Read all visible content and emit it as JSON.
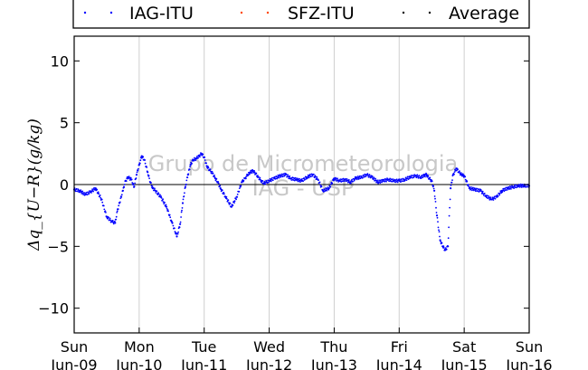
{
  "chart_data": {
    "type": "scatter",
    "title": "",
    "ylabel": "Δq_{U−R}(g/kg)",
    "xlabel": "",
    "ylim": [
      -12,
      12
    ],
    "yticks": [
      -10,
      -5,
      0,
      5,
      10
    ],
    "xlim": [
      "2013-06-09",
      "2013-06-16"
    ],
    "xtick_labels": [
      {
        "day": "Sun",
        "date": "Jun-09"
      },
      {
        "day": "Mon",
        "date": "Jun-10"
      },
      {
        "day": "Tue",
        "date": "Jun-11"
      },
      {
        "day": "Wed",
        "date": "Jun-12"
      },
      {
        "day": "Thu",
        "date": "Jun-13"
      },
      {
        "day": "Fri",
        "date": "Jun-14"
      },
      {
        "day": "Sat",
        "date": "Jun-15"
      },
      {
        "day": "Sun",
        "date": "Jun-16"
      }
    ],
    "vertical_grid": true,
    "zero_line": true,
    "legend_placement": "top, above plot",
    "watermark": [
      "Grupo de Micrometeorologia",
      "IAG - USP"
    ],
    "series": [
      {
        "name": "IAG-ITU",
        "color": "#0000ff",
        "x_days": [
          0,
          0.08,
          0.17,
          0.25,
          0.33,
          0.42,
          0.5,
          0.58,
          0.63,
          0.67,
          0.75,
          0.79,
          0.83,
          0.88,
          0.92,
          0.96,
          1.0,
          1.04,
          1.08,
          1.13,
          1.17,
          1.21,
          1.25,
          1.33,
          1.42,
          1.5,
          1.58,
          1.63,
          1.67,
          1.71,
          1.75,
          1.79,
          1.83,
          1.88,
          1.92,
          1.96,
          2.0,
          2.04,
          2.08,
          2.13,
          2.17,
          2.21,
          2.25,
          2.33,
          2.42,
          2.5,
          2.58,
          2.63,
          2.67,
          2.71,
          2.75,
          2.79,
          2.83,
          2.88,
          2.92,
          2.96,
          3.0,
          3.08,
          3.17,
          3.25,
          3.33,
          3.42,
          3.5,
          3.58,
          3.67,
          3.75,
          3.83,
          3.92,
          4.0,
          4.08,
          4.17,
          4.25,
          4.33,
          4.42,
          4.5,
          4.58,
          4.67,
          4.75,
          4.83,
          4.92,
          5.0,
          5.08,
          5.17,
          5.25,
          5.33,
          5.38,
          5.42,
          5.46,
          5.5,
          5.54,
          5.58,
          5.63,
          5.67,
          5.71,
          5.75,
          5.79,
          5.83,
          5.88,
          5.92,
          5.96,
          6.0,
          6.08,
          6.17,
          6.25,
          6.33,
          6.42,
          6.5,
          6.58,
          6.67,
          6.75,
          6.83,
          6.92,
          7.0
        ],
        "values": [
          -0.4,
          -0.5,
          -0.8,
          -0.6,
          -0.3,
          -1.2,
          -2.6,
          -3.0,
          -3.1,
          -2.0,
          -0.5,
          0.3,
          0.6,
          0.4,
          -0.2,
          0.8,
          1.6,
          2.3,
          2.0,
          1.0,
          0.2,
          -0.3,
          -0.5,
          -1.0,
          -1.8,
          -3.0,
          -4.2,
          -3.2,
          -1.5,
          -0.2,
          0.8,
          1.6,
          2.0,
          2.1,
          2.3,
          2.5,
          2.2,
          1.5,
          1.2,
          0.9,
          0.5,
          0.2,
          -0.3,
          -1.0,
          -1.8,
          -1.0,
          0.2,
          0.5,
          0.8,
          1.0,
          1.1,
          0.9,
          0.6,
          0.3,
          0.1,
          0.2,
          0.3,
          0.5,
          0.7,
          0.8,
          0.5,
          0.4,
          0.3,
          0.6,
          0.8,
          0.4,
          -0.5,
          -0.3,
          0.5,
          0.3,
          0.4,
          0.2,
          0.5,
          0.6,
          0.8,
          0.6,
          0.2,
          0.3,
          0.4,
          0.3,
          0.3,
          0.4,
          0.6,
          0.7,
          0.6,
          0.7,
          0.8,
          0.5,
          0.3,
          -0.5,
          -2.5,
          -4.5,
          -5.0,
          -5.3,
          -5.0,
          -0.3,
          0.8,
          1.3,
          1.0,
          0.8,
          0.7,
          -0.3,
          -0.4,
          -0.5,
          -0.9,
          -1.2,
          -1.0,
          -0.5,
          -0.3,
          -0.2,
          -0.1,
          -0.1,
          -0.1
        ]
      },
      {
        "name": "SFZ-ITU",
        "color": "#ff4500",
        "x_days": [],
        "values": []
      },
      {
        "name": "Average",
        "color": "#000000",
        "x_days": [],
        "values": []
      }
    ]
  }
}
